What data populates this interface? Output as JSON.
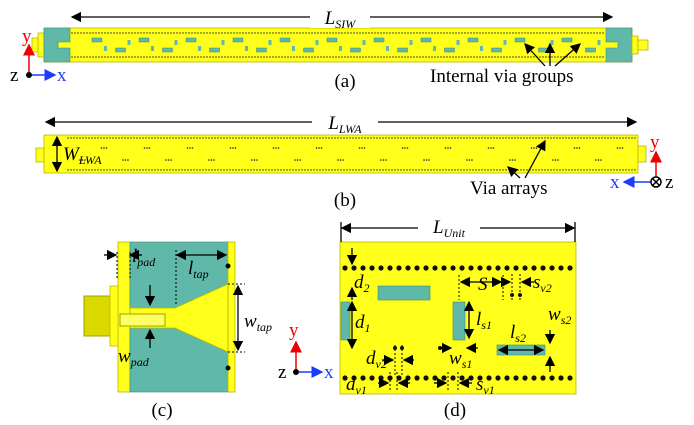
{
  "panel_a": {
    "caption": "(a)",
    "length": {
      "main": "L",
      "sub": "SIW"
    },
    "annotation": "Internal via groups",
    "axis_y": "y",
    "axis_z": "z",
    "axis_x": "x"
  },
  "panel_b": {
    "caption": "(b)",
    "length": {
      "main": "L",
      "sub": "LWA"
    },
    "width": {
      "main": "W",
      "sub": "LWA"
    },
    "annotation": "Via arrays",
    "axis_y": "y",
    "axis_x": "x",
    "axis_z": "z"
  },
  "panel_c": {
    "caption": "(c)",
    "l_pad": {
      "main": "l",
      "sub": "pad"
    },
    "l_tap": {
      "main": "l",
      "sub": "tap"
    },
    "w_tap": {
      "main": "w",
      "sub": "tap"
    },
    "w_pad": {
      "main": "w",
      "sub": "pad"
    }
  },
  "panel_d": {
    "caption": "(d)",
    "length": {
      "main": "L",
      "sub": "Unit"
    },
    "d_2": {
      "main": "d",
      "sub": "2"
    },
    "S": {
      "main": "S"
    },
    "s_v2": {
      "main": "s",
      "sub": "v2"
    },
    "d_1": {
      "main": "d",
      "sub": "1"
    },
    "l_s1": {
      "main": "l",
      "sub": "s1"
    },
    "w_s2": {
      "main": "w",
      "sub": "s2"
    },
    "l_s2": {
      "main": "l",
      "sub": "s2"
    },
    "d_v2": {
      "main": "d",
      "sub": "v2"
    },
    "w_s1": {
      "main": "w",
      "sub": "s1"
    },
    "d_v1": {
      "main": "d",
      "sub": "v1"
    },
    "s_v1": {
      "main": "s",
      "sub": "v1"
    },
    "axis_y": "y",
    "axis_z": "z",
    "axis_x": "x"
  }
}
